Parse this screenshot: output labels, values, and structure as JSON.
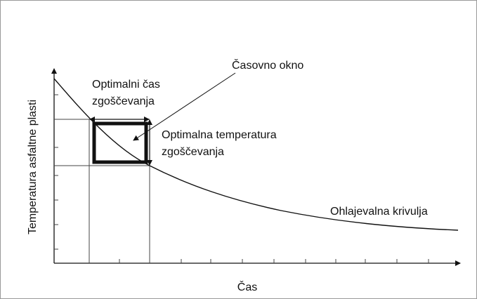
{
  "axes": {
    "y_label": "Temperatura asfaltne plasti",
    "x_label": "Čas"
  },
  "annotations": {
    "time_window": "Časovno okno",
    "optimal_time": [
      "Optimalni čas",
      "zgoščevanja"
    ],
    "optimal_temperature": [
      "Optimalna temperatura",
      "zgoščevanja"
    ],
    "cooling_curve": "Ohlajevalna krivulja"
  }
}
